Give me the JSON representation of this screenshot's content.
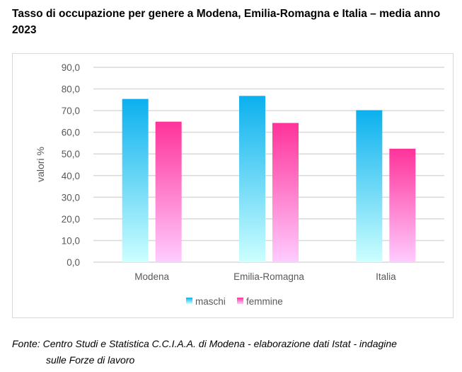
{
  "title": "Tasso di occupazione per genere a Modena, Emilia-Romagna e Italia – media anno 2023",
  "footer": {
    "line1": "Fonte: Centro Studi e Statistica C.C.I.A.A. di Modena - elaborazione dati Istat - indagine",
    "line2": "sulle Forze di lavoro"
  },
  "chart_data": {
    "type": "bar",
    "title": "",
    "xlabel": "",
    "ylabel": "valori %",
    "ylim": [
      0,
      90
    ],
    "yticks": [
      "0,0",
      "10,0",
      "20,0",
      "30,0",
      "40,0",
      "50,0",
      "60,0",
      "70,0",
      "80,0",
      "90,0"
    ],
    "grid": true,
    "legend": "bottom",
    "categories": [
      "Modena",
      "Emilia-Romagna",
      "Italia"
    ],
    "series": [
      {
        "name": "maschi",
        "values": [
          75.4,
          76.8,
          70.2
        ],
        "color_top": "#0bb0ee",
        "color_bottom": "#ccffff"
      },
      {
        "name": "femmine",
        "values": [
          64.9,
          64.3,
          52.4
        ],
        "color_top": "#ff3399",
        "color_bottom": "#ffccff"
      }
    ]
  }
}
